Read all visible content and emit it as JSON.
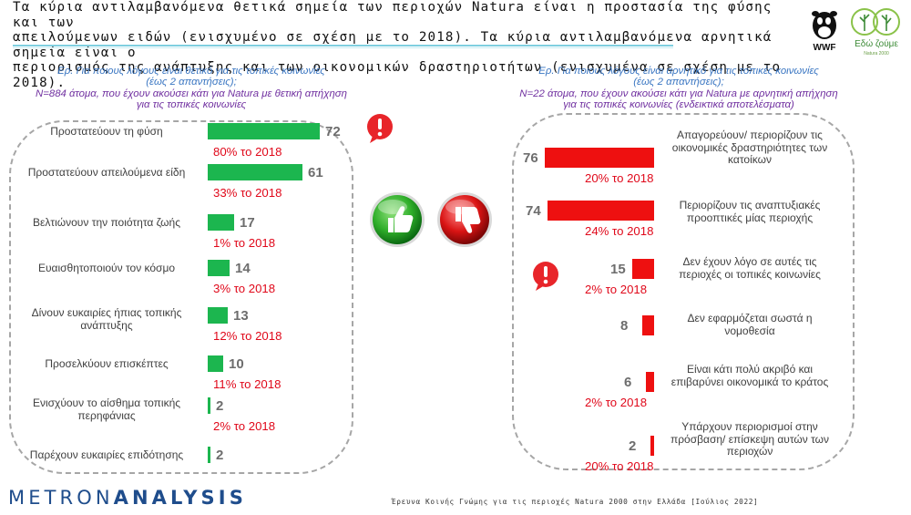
{
  "header": {
    "line1": "Τα κύρια αντιλαμβανόμενα θετικά σημεία των περιοχών Natura είναι η προστασία της φύσης και των",
    "line2": "απειλούμενων ειδών (ενισχυμένο σε σχέση με το 2018). Τα κύρια αντιλαμβανόμενα αρνητικά σημεία είναι ο",
    "line3": "περιορισμός της ανάπτυξης και των οικονομικών δραστηριοτήτων (ενισχυμένα σε σχέση με το 2018)."
  },
  "logos": {
    "wwf": "WWF",
    "edo_name": "Εδώ ζούμε",
    "edo_sub": "Natura 2000"
  },
  "colors": {
    "positive": "#1cb64f",
    "negative": "#ee1010",
    "comparison": "#e0081a",
    "question": "#3a76c2",
    "base": "#7030a0"
  },
  "icons": [
    "thumbs-up-icon",
    "thumbs-down-icon",
    "exclamation-bubble-icon"
  ],
  "chart_data": [
    {
      "type": "bar",
      "orientation": "horizontal",
      "question": "Ερ. Για ποιους λόγους είναι θετικό για τις τοπικές κοινωνίες",
      "question_note": "(έως 2 απαντήσεις);",
      "base_line1": "N=884 άτομα, που έχουν ακούσει κάτι για Natura με θετική απήχηση",
      "base_line2": "για τις τοπικές κοινωνίες",
      "categories": [
        "Προστατεύουν τη φύση",
        "Προστατεύουν απειλούμενα είδη",
        "Βελτιώνουν την ποιότητα ζωής",
        "Ευαισθητοποιούν τον κόσμο",
        "Δίνουν ευκαιρίες ήπιας τοπικής ανάπτυξης",
        "Προσελκύουν επισκέπτες",
        "Ενισχύουν το αίσθημα τοπικής περηφάνιας",
        "Παρέχουν ευκαιρίες επιδότησης"
      ],
      "values": [
        72,
        61,
        17,
        14,
        13,
        10,
        2,
        2
      ],
      "comparison_2018": [
        "80% το 2018",
        "33% το 2018",
        "1% το 2018",
        "3% το 2018",
        "12% το 2018",
        "11% το 2018",
        "2% το 2018",
        ""
      ],
      "xlim": [
        0,
        72
      ]
    },
    {
      "type": "bar",
      "orientation": "horizontal",
      "question": "Ερ. Για ποιους λόγους είναι αρνητικό για τις τοπικές κοινωνίες",
      "question_note": "(έως 2 απαντήσεις);",
      "base_line1": "N=22 άτομα, που έχουν ακούσει κάτι για Natura με αρνητική απήχηση",
      "base_line2": "για τις τοπικές κοινωνίες (ενδεικτικά αποτελέσματα)",
      "categories": [
        "Απαγορεύουν/ περιορίζουν τις οικονομικές δραστηριότητες των κατοίκων",
        "Περιορίζουν τις αναπτυξιακές προοπτικές μίας περιοχής",
        "Δεν έχουν λόγο σε αυτές τις περιοχές οι τοπικές κοινωνίες",
        "Δεν εφαρμόζεται σωστά η νομοθεσία",
        "Είναι κάτι πολύ ακριβό και επιβαρύνει οικονομικά το κράτος",
        "Υπάρχουν περιορισμοί στην πρόσβαση/ επίσκεψη αυτών των περιοχών"
      ],
      "values": [
        76,
        74,
        15,
        8,
        6,
        2
      ],
      "comparison_2018": [
        "20% το 2018",
        "24% το 2018",
        "2% το 2018",
        "",
        "2% το 2018",
        "20% το 2018"
      ],
      "xlim": [
        0,
        76
      ]
    }
  ],
  "footer": {
    "brand_a": "METRON",
    "brand_b": "ANALYSIS",
    "note": "Έρευνα Κοινής Γνώμης για τις περιοχές Natura 2000 στην Ελλάδα [Ιούλιος 2022]"
  }
}
